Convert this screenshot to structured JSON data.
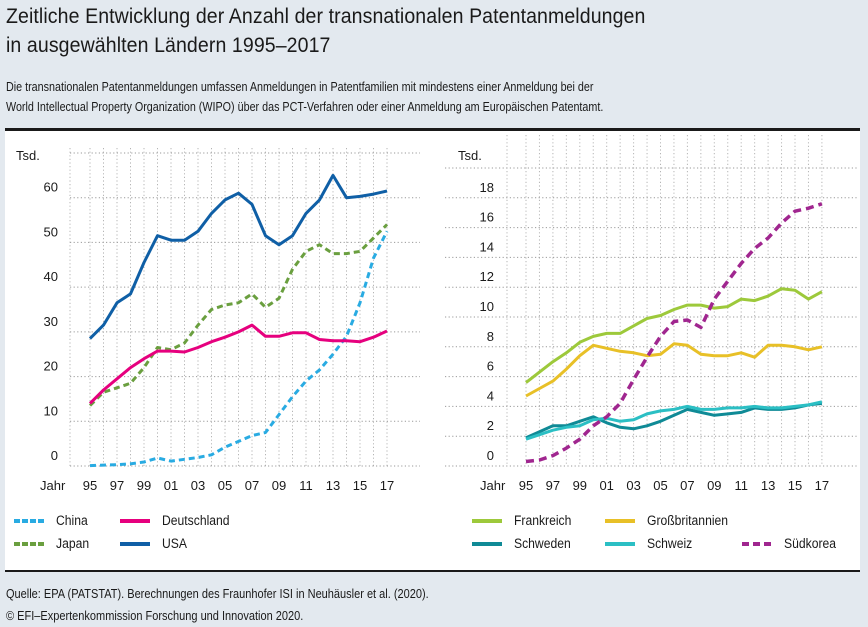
{
  "header": {
    "title_line1": "Zeitliche Entwicklung der Anzahl der transnationalen Patentanmeldungen",
    "title_line2": "in ausgewählten Ländern 1995–2017",
    "subtitle_line1": "Die transnationalen Patentanmeldungen umfassen Anmeldungen in Patentfamilien mit mindestens einer Anmeldung bei der",
    "subtitle_line2": "World Intellectual Property Organization (WIPO) über das PCT-Verfahren oder einer Anmeldung am Europäischen Patentamt."
  },
  "footer": {
    "source": "Quelle: EPA (PATSTAT). Berechnungen des Fraunhofer ISI in Neuhäusler et al. (2020).",
    "copyright": "© EFI–Expertenkommission Forschung und Innovation 2020."
  },
  "chart_data": [
    {
      "type": "line",
      "title": "",
      "ylabel": "Tsd.",
      "xlabel": "Jahr",
      "ylim": [
        0,
        70
      ],
      "yticks": [
        0,
        10,
        20,
        30,
        40,
        50,
        60
      ],
      "x": [
        1995,
        1996,
        1997,
        1998,
        1999,
        2000,
        2001,
        2002,
        2003,
        2004,
        2005,
        2006,
        2007,
        2008,
        2009,
        2010,
        2011,
        2012,
        2013,
        2014,
        2015,
        2016,
        2017
      ],
      "xtick_labels": [
        "95",
        "97",
        "99",
        "01",
        "03",
        "05",
        "07",
        "09",
        "11",
        "13",
        "15",
        "17"
      ],
      "grid": true,
      "legend": "bottom",
      "series": [
        {
          "name": "China",
          "color": "#29abe2",
          "style": "dotted",
          "values": [
            0.1,
            0.2,
            0.3,
            0.5,
            0.9,
            1.8,
            1.1,
            1.5,
            1.9,
            2.5,
            4.2,
            5.5,
            6.8,
            7.5,
            11.5,
            15.5,
            19,
            21.5,
            25,
            29,
            36.5,
            46.5,
            52.5
          ]
        },
        {
          "name": "Japan",
          "color": "#6a9f3f",
          "style": "dotted",
          "values": [
            13.5,
            16.5,
            17.5,
            18.5,
            22,
            26.5,
            26,
            27.5,
            31.5,
            35,
            36,
            36.5,
            38.5,
            35.5,
            37.5,
            44,
            48,
            49.5,
            47.5,
            47.5,
            48,
            51,
            54
          ]
        },
        {
          "name": "Deutschland",
          "color": "#e6007e",
          "style": "solid",
          "values": [
            14,
            17,
            19.5,
            22,
            24,
            25.7,
            25.7,
            25.5,
            26.5,
            27.8,
            28.8,
            30,
            31.5,
            29,
            29,
            29.8,
            29.8,
            28.3,
            28,
            28,
            27.8,
            28.8,
            30.2
          ]
        },
        {
          "name": "USA",
          "color": "#0f5fa6",
          "style": "solid",
          "values": [
            28.5,
            31.5,
            36.5,
            38.5,
            45.5,
            51.5,
            50.5,
            50.5,
            52.5,
            56.5,
            59.5,
            61,
            58.5,
            51.5,
            49.5,
            51.5,
            56.5,
            59.5,
            65,
            60,
            60.3,
            60.8,
            61.5
          ]
        }
      ]
    },
    {
      "type": "line",
      "title": "",
      "ylabel": "Tsd.",
      "xlabel": "Jahr",
      "ylim": [
        0,
        20
      ],
      "yticks": [
        0,
        2,
        4,
        6,
        8,
        10,
        12,
        14,
        16,
        18
      ],
      "x": [
        1995,
        1996,
        1997,
        1998,
        1999,
        2000,
        2001,
        2002,
        2003,
        2004,
        2005,
        2006,
        2007,
        2008,
        2009,
        2010,
        2011,
        2012,
        2013,
        2014,
        2015,
        2016,
        2017
      ],
      "xtick_labels": [
        "95",
        "97",
        "99",
        "01",
        "03",
        "05",
        "07",
        "09",
        "11",
        "13",
        "15",
        "17"
      ],
      "grid": true,
      "legend": "bottom",
      "series": [
        {
          "name": "Frankreich",
          "color": "#9dc93b",
          "style": "solid",
          "values": [
            5.6,
            6.3,
            7,
            7.6,
            8.3,
            8.7,
            8.9,
            8.9,
            9.4,
            9.9,
            10.1,
            10.5,
            10.8,
            10.8,
            10.6,
            10.7,
            11.2,
            11.1,
            11.4,
            11.9,
            11.8,
            11.2,
            11.7
          ]
        },
        {
          "name": "Großbritannien",
          "color": "#e8c027",
          "style": "solid",
          "values": [
            4.7,
            5.2,
            5.7,
            6.5,
            7.4,
            8.1,
            7.9,
            7.7,
            7.6,
            7.4,
            7.5,
            8.2,
            8.1,
            7.5,
            7.4,
            7.4,
            7.6,
            7.3,
            8.1,
            8.1,
            8.0,
            7.8,
            8.0
          ]
        },
        {
          "name": "Schweden",
          "color": "#0f8a96",
          "style": "solid",
          "values": [
            1.9,
            2.3,
            2.7,
            2.7,
            3.0,
            3.3,
            2.9,
            2.6,
            2.5,
            2.7,
            3.0,
            3.4,
            3.8,
            3.6,
            3.4,
            3.5,
            3.6,
            3.9,
            3.8,
            3.8,
            3.9,
            4.1,
            4.2
          ]
        },
        {
          "name": "Schweiz",
          "color": "#2bbfc4",
          "style": "solid",
          "values": [
            1.8,
            2.1,
            2.4,
            2.6,
            2.7,
            3.1,
            3.2,
            3.0,
            3.1,
            3.5,
            3.7,
            3.8,
            4.0,
            3.8,
            3.8,
            3.9,
            3.9,
            4.0,
            3.9,
            3.9,
            4.0,
            4.1,
            4.3
          ]
        },
        {
          "name": "Südkorea",
          "color": "#a0268f",
          "style": "dashed",
          "values": [
            0.3,
            0.4,
            0.7,
            1.2,
            1.8,
            2.7,
            3.3,
            4.2,
            5.8,
            7.3,
            8.7,
            9.7,
            9.8,
            9.3,
            11.2,
            12.4,
            13.6,
            14.6,
            15.3,
            16.3,
            17.1,
            17.3,
            17.6
          ]
        }
      ]
    }
  ]
}
